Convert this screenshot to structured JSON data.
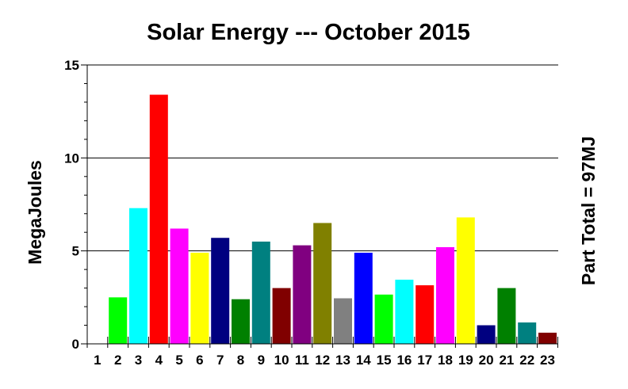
{
  "chart_data": {
    "type": "bar",
    "title": "Solar Energy --- October 2015",
    "ylabel": "MegaJoules",
    "right_label": "Part Total = 97MJ",
    "ylim": [
      0,
      15
    ],
    "yticks": [
      0,
      5,
      10,
      15
    ],
    "grid": "horizontal at major ticks",
    "categories": [
      "1",
      "2",
      "3",
      "4",
      "5",
      "6",
      "7",
      "8",
      "9",
      "10",
      "11",
      "12",
      "13",
      "14",
      "15",
      "16",
      "17",
      "18",
      "19",
      "20",
      "21",
      "22",
      "23"
    ],
    "values": [
      0,
      2.5,
      7.3,
      13.4,
      6.2,
      4.9,
      5.7,
      2.4,
      5.5,
      3.0,
      5.3,
      6.5,
      2.45,
      4.9,
      2.65,
      3.45,
      3.15,
      5.2,
      6.8,
      1.0,
      3.0,
      1.15,
      0.6
    ],
    "colors": [
      "#ffffff",
      "#00ff00",
      "#00ffff",
      "#ff0000",
      "#ff00ff",
      "#ffff00",
      "#000080",
      "#008000",
      "#008080",
      "#800000",
      "#800080",
      "#808000",
      "#808080",
      "#0000ff",
      "#00ff00",
      "#00ffff",
      "#ff0000",
      "#ff00ff",
      "#ffff00",
      "#000080",
      "#008000",
      "#008080",
      "#800000"
    ]
  }
}
